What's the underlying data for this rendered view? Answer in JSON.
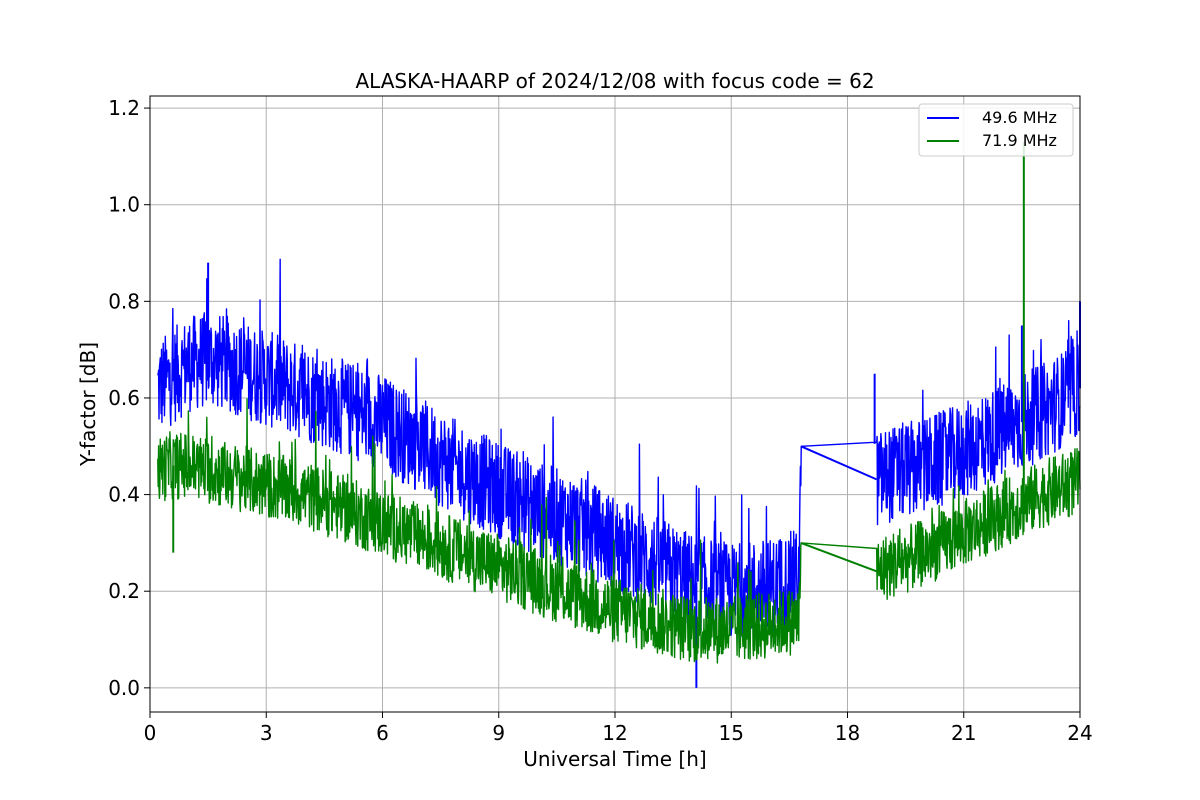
{
  "chart_data": {
    "type": "line",
    "title": "ALASKA-HAARP of 2024/12/08 with focus code = 62",
    "xlabel": "Universal Time [h]",
    "ylabel": "Y-factor [dB]",
    "xlim": [
      0,
      24
    ],
    "ylim": [
      -0.05,
      1.225
    ],
    "xticks": [
      "0",
      "3",
      "6",
      "9",
      "12",
      "15",
      "18",
      "21",
      "24"
    ],
    "xtick_values": [
      0,
      3,
      6,
      9,
      12,
      15,
      18,
      21,
      24
    ],
    "yticks": [
      "0.0",
      "0.2",
      "0.4",
      "0.6",
      "0.8",
      "1.0",
      "1.2"
    ],
    "ytick_values": [
      0.0,
      0.2,
      0.4,
      0.6,
      0.8,
      1.0,
      1.2
    ],
    "grid": true,
    "legend_position": "top-right",
    "series": [
      {
        "name": "49.6 MHz",
        "color": "#0000ff",
        "x": [
          0.2,
          0.5,
          1.0,
          1.5,
          2.0,
          3.0,
          4.0,
          5.0,
          6.0,
          7.0,
          8.0,
          9.0,
          10.0,
          11.0,
          12.0,
          13.0,
          14.0,
          15.0,
          16.0,
          16.75,
          16.8,
          18.7,
          18.75,
          19.0,
          20.0,
          21.0,
          22.0,
          23.0,
          24.0
        ],
        "y": [
          0.62,
          0.64,
          0.67,
          0.68,
          0.67,
          0.64,
          0.61,
          0.58,
          0.55,
          0.5,
          0.45,
          0.41,
          0.37,
          0.34,
          0.3,
          0.26,
          0.22,
          0.2,
          0.21,
          0.23,
          0.5,
          0.505,
          0.43,
          0.44,
          0.46,
          0.49,
          0.53,
          0.57,
          0.62
        ],
        "noise_range": 0.2,
        "gap": [
          16.8,
          18.75
        ],
        "spikes": [
          {
            "x": 1.5,
            "y": 0.88
          },
          {
            "x": 18.7,
            "y": 0.65
          },
          {
            "x": 22.5,
            "y": 0.75
          },
          {
            "x": 24.0,
            "y": 0.8
          },
          {
            "x": 14.1,
            "y": 0.0
          }
        ]
      },
      {
        "name": "71.9 MHz",
        "color": "#008000",
        "x": [
          0.2,
          0.5,
          1.0,
          1.5,
          2.0,
          3.0,
          4.0,
          5.0,
          6.0,
          7.0,
          8.0,
          9.0,
          10.0,
          11.0,
          12.0,
          13.0,
          14.0,
          15.0,
          16.0,
          16.75,
          16.8,
          18.7,
          18.75,
          19.0,
          20.0,
          21.0,
          22.0,
          23.0,
          24.0
        ],
        "y": [
          0.45,
          0.46,
          0.46,
          0.45,
          0.44,
          0.42,
          0.4,
          0.37,
          0.34,
          0.31,
          0.28,
          0.25,
          0.22,
          0.19,
          0.16,
          0.14,
          0.12,
          0.12,
          0.13,
          0.14,
          0.3,
          0.3,
          0.24,
          0.25,
          0.28,
          0.32,
          0.36,
          0.4,
          0.43
        ],
        "noise_range": 0.14,
        "gap": [
          16.8,
          18.75
        ],
        "spikes": [
          {
            "x": 22.55,
            "y": 1.13
          },
          {
            "x": 0.6,
            "y": 0.28
          }
        ]
      }
    ]
  }
}
